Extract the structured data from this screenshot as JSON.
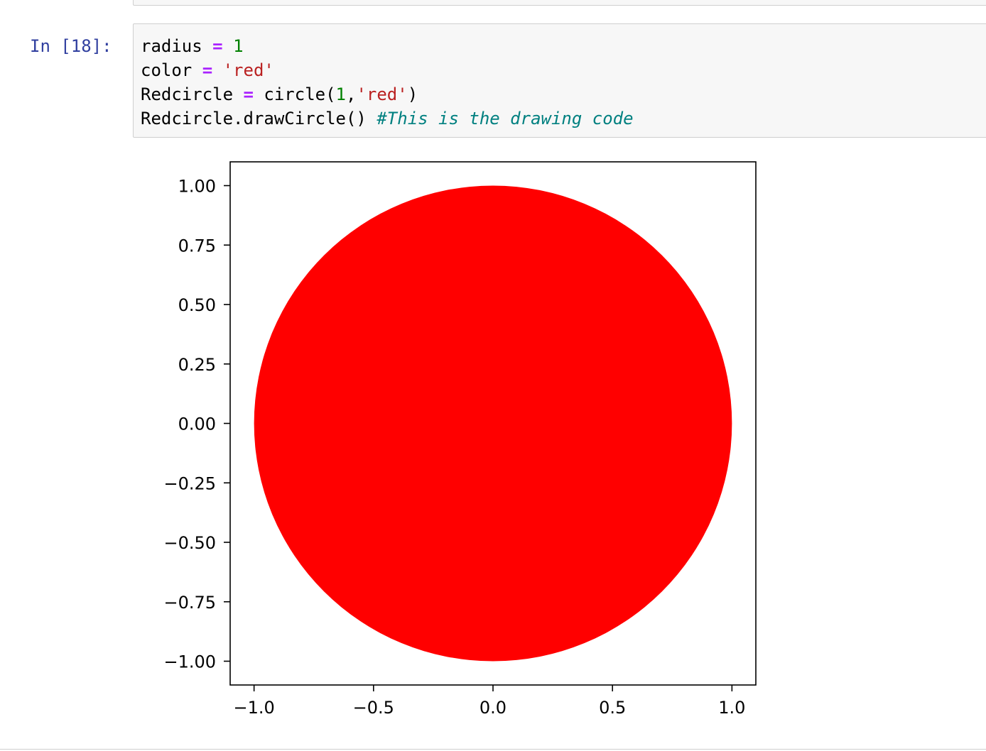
{
  "cell": {
    "prompt": "In [18]:",
    "code_lines": [
      [
        {
          "t": "radius "
        },
        {
          "t": "=",
          "c": "op"
        },
        {
          "t": " "
        },
        {
          "t": "1",
          "c": "num"
        }
      ],
      [
        {
          "t": "color "
        },
        {
          "t": "=",
          "c": "op"
        },
        {
          "t": " "
        },
        {
          "t": "'red'",
          "c": "str"
        }
      ],
      [
        {
          "t": "Redcircle "
        },
        {
          "t": "=",
          "c": "op"
        },
        {
          "t": " circle("
        },
        {
          "t": "1",
          "c": "num"
        },
        {
          "t": ","
        },
        {
          "t": "'red'",
          "c": "str"
        },
        {
          "t": ")"
        }
      ],
      [
        {
          "t": "Redcircle.drawCircle() "
        },
        {
          "t": "#This is the drawing code",
          "c": "cmt"
        }
      ]
    ]
  },
  "chart_data": {
    "type": "scatter",
    "title": "",
    "xlabel": "",
    "ylabel": "",
    "shape": "filled circle",
    "center": [
      0,
      0
    ],
    "radius": 1,
    "fill_color": "#ff0000",
    "xlim": [
      -1.1,
      1.1
    ],
    "ylim": [
      -1.1,
      1.1
    ],
    "x_ticks": [
      -1.0,
      -0.5,
      0.0,
      0.5,
      1.0
    ],
    "x_tick_labels": [
      "−1.0",
      "−0.5",
      "0.0",
      "0.5",
      "1.0"
    ],
    "y_ticks": [
      1.0,
      0.75,
      0.5,
      0.25,
      0.0,
      -0.25,
      -0.5,
      -0.75,
      -1.0
    ],
    "y_tick_labels": [
      "1.00",
      "0.75",
      "0.50",
      "0.25",
      "0.00",
      "−0.25",
      "−0.50",
      "−0.75",
      "−1.00"
    ],
    "grid": false,
    "legend": "none"
  }
}
